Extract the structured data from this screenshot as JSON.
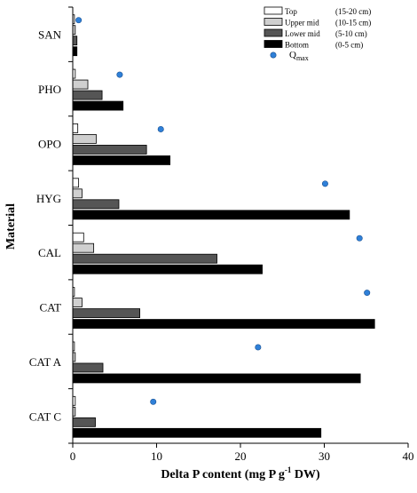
{
  "chart_data": {
    "type": "bar",
    "orientation": "horizontal",
    "xlabel": "Delta P content (mg P g",
    "xlabel_sup": "-1",
    "xlabel_tail": " DW)",
    "ylabel": "Material",
    "xlim": [
      0,
      40
    ],
    "x_ticks": [
      0,
      10,
      20,
      30,
      40
    ],
    "categories": [
      "SAN",
      "PHO",
      "OPO",
      "HYG",
      "CAL",
      "CAT",
      "CAT A",
      "CAT C"
    ],
    "series": [
      {
        "name": "Top",
        "depth": "(15-20 cm)",
        "color": "#ffffff",
        "values": [
          0.2,
          0.3,
          0.6,
          0.7,
          1.3,
          0.2,
          0.2,
          0.3
        ]
      },
      {
        "name": "Upper mid",
        "depth": "(10-15 cm)",
        "color": "#cfcfcf",
        "values": [
          0.3,
          1.8,
          2.8,
          1.1,
          2.5,
          1.1,
          0.3,
          0.3
        ]
      },
      {
        "name": "Lower mid",
        "depth": "(5-10 cm)",
        "color": "#555555",
        "values": [
          0.5,
          3.5,
          8.8,
          5.5,
          17.2,
          8.0,
          3.6,
          2.7
        ]
      },
      {
        "name": "Bottom",
        "depth": "(0-5 cm)",
        "color": "#000000",
        "values": [
          0.5,
          6.0,
          11.6,
          33.0,
          22.6,
          36.0,
          34.3,
          29.6
        ]
      }
    ],
    "qmax": {
      "name": "Q",
      "name_sub": "max",
      "color": "#2f80d8",
      "values": [
        0.7,
        5.6,
        10.5,
        30.1,
        34.2,
        35.1,
        22.1,
        9.6
      ]
    },
    "legend_position": "top-right",
    "grid": false
  }
}
